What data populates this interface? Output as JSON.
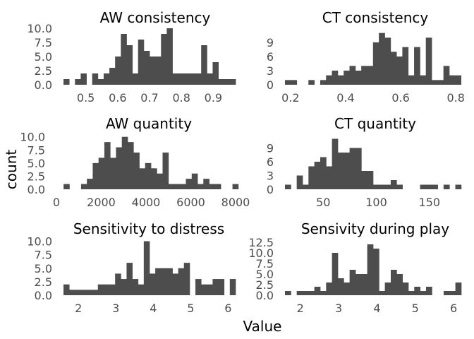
{
  "chart_data": {
    "type": "histogram",
    "xlabel": "Value",
    "ylabel": "count",
    "bar_color": "#4d4d4d",
    "background": "#ffffff",
    "panels": [
      {
        "title": "AW consistency",
        "xlim": [
          0.43,
          0.97
        ],
        "ylim": [
          0,
          10
        ],
        "xticks": [
          {
            "v": 0.5,
            "label": "0.5"
          },
          {
            "v": 0.6,
            "label": "0.6"
          },
          {
            "v": 0.7,
            "label": "0.7"
          },
          {
            "v": 0.8,
            "label": "0.8"
          },
          {
            "v": 0.9,
            "label": "0.9"
          }
        ],
        "yticks": [
          {
            "v": 0,
            "label": "0.0"
          },
          {
            "v": 2.5,
            "label": "2.5"
          },
          {
            "v": 5,
            "label": "5.0"
          },
          {
            "v": 7.5,
            "label": "7.5"
          },
          {
            "v": 10,
            "label": "10.0"
          }
        ],
        "bin_start": 0.43,
        "bin_width": 0.018,
        "counts": [
          1,
          0,
          1,
          2,
          0,
          2,
          1,
          2,
          3,
          5,
          9,
          7,
          2,
          8,
          6,
          5,
          5,
          9,
          10,
          2,
          2,
          2,
          2,
          2,
          7,
          2,
          4,
          1,
          1,
          1
        ]
      },
      {
        "title": "CT consistency",
        "xlim": [
          0.18,
          0.82
        ],
        "ylim": [
          0,
          12
        ],
        "xticks": [
          {
            "v": 0.2,
            "label": "0.2"
          },
          {
            "v": 0.4,
            "label": "0.4"
          },
          {
            "v": 0.6,
            "label": "0.6"
          },
          {
            "v": 0.8,
            "label": "0.8"
          }
        ],
        "yticks": [
          {
            "v": 0,
            "label": "0"
          },
          {
            "v": 3,
            "label": "3"
          },
          {
            "v": 6,
            "label": "6"
          },
          {
            "v": 9,
            "label": "9"
          }
        ],
        "bin_start": 0.18,
        "bin_width": 0.0213,
        "counts": [
          1,
          1,
          0,
          0,
          1,
          0,
          1,
          2,
          3,
          2,
          3,
          4,
          3,
          4,
          4,
          9,
          11,
          10,
          7,
          6,
          8,
          2,
          8,
          2,
          10,
          1,
          1,
          4,
          2,
          2
        ]
      },
      {
        "title": "AW quantity",
        "xlim": [
          0,
          8000
        ],
        "ylim": [
          0,
          10.5
        ],
        "xticks": [
          {
            "v": 0,
            "label": "0"
          },
          {
            "v": 2000,
            "label": "2000"
          },
          {
            "v": 4000,
            "label": "4000"
          },
          {
            "v": 6000,
            "label": "6000"
          },
          {
            "v": 8000,
            "label": "8000"
          }
        ],
        "yticks": [
          {
            "v": 0,
            "label": "0.0"
          },
          {
            "v": 2.5,
            "label": "2.5"
          },
          {
            "v": 5,
            "label": "5.0"
          },
          {
            "v": 7.5,
            "label": "7.5"
          },
          {
            "v": 10,
            "label": "10.0"
          }
        ],
        "bin_start": 320,
        "bin_width": 260,
        "counts": [
          1,
          0,
          0,
          1,
          2,
          5,
          6,
          9,
          6,
          8,
          10,
          9,
          7,
          4,
          5,
          4,
          3,
          7,
          1,
          1,
          1,
          2,
          3,
          1,
          2,
          1,
          1,
          0,
          0,
          1
        ]
      },
      {
        "title": "CT quantity",
        "xlim": [
          14,
          180
        ],
        "ylim": [
          0,
          12
        ],
        "xticks": [
          {
            "v": 50,
            "label": "50"
          },
          {
            "v": 100,
            "label": "100"
          },
          {
            "v": 150,
            "label": "150"
          }
        ],
        "yticks": [
          {
            "v": 0,
            "label": "0"
          },
          {
            "v": 3,
            "label": "3"
          },
          {
            "v": 6,
            "label": "6"
          },
          {
            "v": 9,
            "label": "9"
          }
        ],
        "bin_start": 14,
        "bin_width": 5.53,
        "counts": [
          1,
          0,
          3,
          1,
          5,
          6,
          7,
          5,
          11,
          8,
          8,
          9,
          9,
          4,
          4,
          1,
          1,
          1,
          2,
          1,
          0,
          0,
          0,
          1,
          1,
          1,
          0,
          1,
          0,
          1
        ]
      },
      {
        "title": "Sensitivity to distress",
        "xlim": [
          1.6,
          6.2
        ],
        "ylim": [
          0,
          10.2
        ],
        "xticks": [
          {
            "v": 2,
            "label": "2"
          },
          {
            "v": 3,
            "label": "3"
          },
          {
            "v": 4,
            "label": "4"
          },
          {
            "v": 5,
            "label": "5"
          },
          {
            "v": 6,
            "label": "6"
          }
        ],
        "yticks": [
          {
            "v": 0,
            "label": "0.0"
          },
          {
            "v": 2.5,
            "label": "2.5"
          },
          {
            "v": 5,
            "label": "5.0"
          },
          {
            "v": 7.5,
            "label": "7.5"
          },
          {
            "v": 10,
            "label": "10.0"
          }
        ],
        "bin_start": 1.6,
        "bin_width": 0.1533,
        "counts": [
          2,
          1,
          1,
          1,
          1,
          1,
          2,
          2,
          2,
          4,
          3,
          6,
          3,
          2,
          10,
          4,
          5,
          5,
          5,
          4,
          5,
          6,
          0,
          3,
          2,
          2,
          3,
          3,
          0,
          3
        ]
      },
      {
        "title": "Sensivity during play",
        "xlim": [
          1.6,
          6.2
        ],
        "ylim": [
          0,
          13
        ],
        "xticks": [
          {
            "v": 2,
            "label": "2"
          },
          {
            "v": 3,
            "label": "3"
          },
          {
            "v": 4,
            "label": "4"
          },
          {
            "v": 5,
            "label": "5"
          },
          {
            "v": 6,
            "label": "6"
          }
        ],
        "yticks": [
          {
            "v": 0,
            "label": "0.0"
          },
          {
            "v": 2.5,
            "label": "2.5"
          },
          {
            "v": 5,
            "label": "5.0"
          },
          {
            "v": 7.5,
            "label": "7.5"
          },
          {
            "v": 10,
            "label": "10.0"
          },
          {
            "v": 12.5,
            "label": "12.5"
          }
        ],
        "bin_start": 1.6,
        "bin_width": 0.1533,
        "counts": [
          1,
          0,
          1,
          1,
          1,
          2,
          1,
          3,
          10,
          4,
          3,
          6,
          5,
          5,
          12,
          11,
          1,
          3,
          6,
          5,
          3,
          1,
          2,
          1,
          2,
          0,
          0,
          1,
          1,
          3
        ]
      }
    ]
  }
}
